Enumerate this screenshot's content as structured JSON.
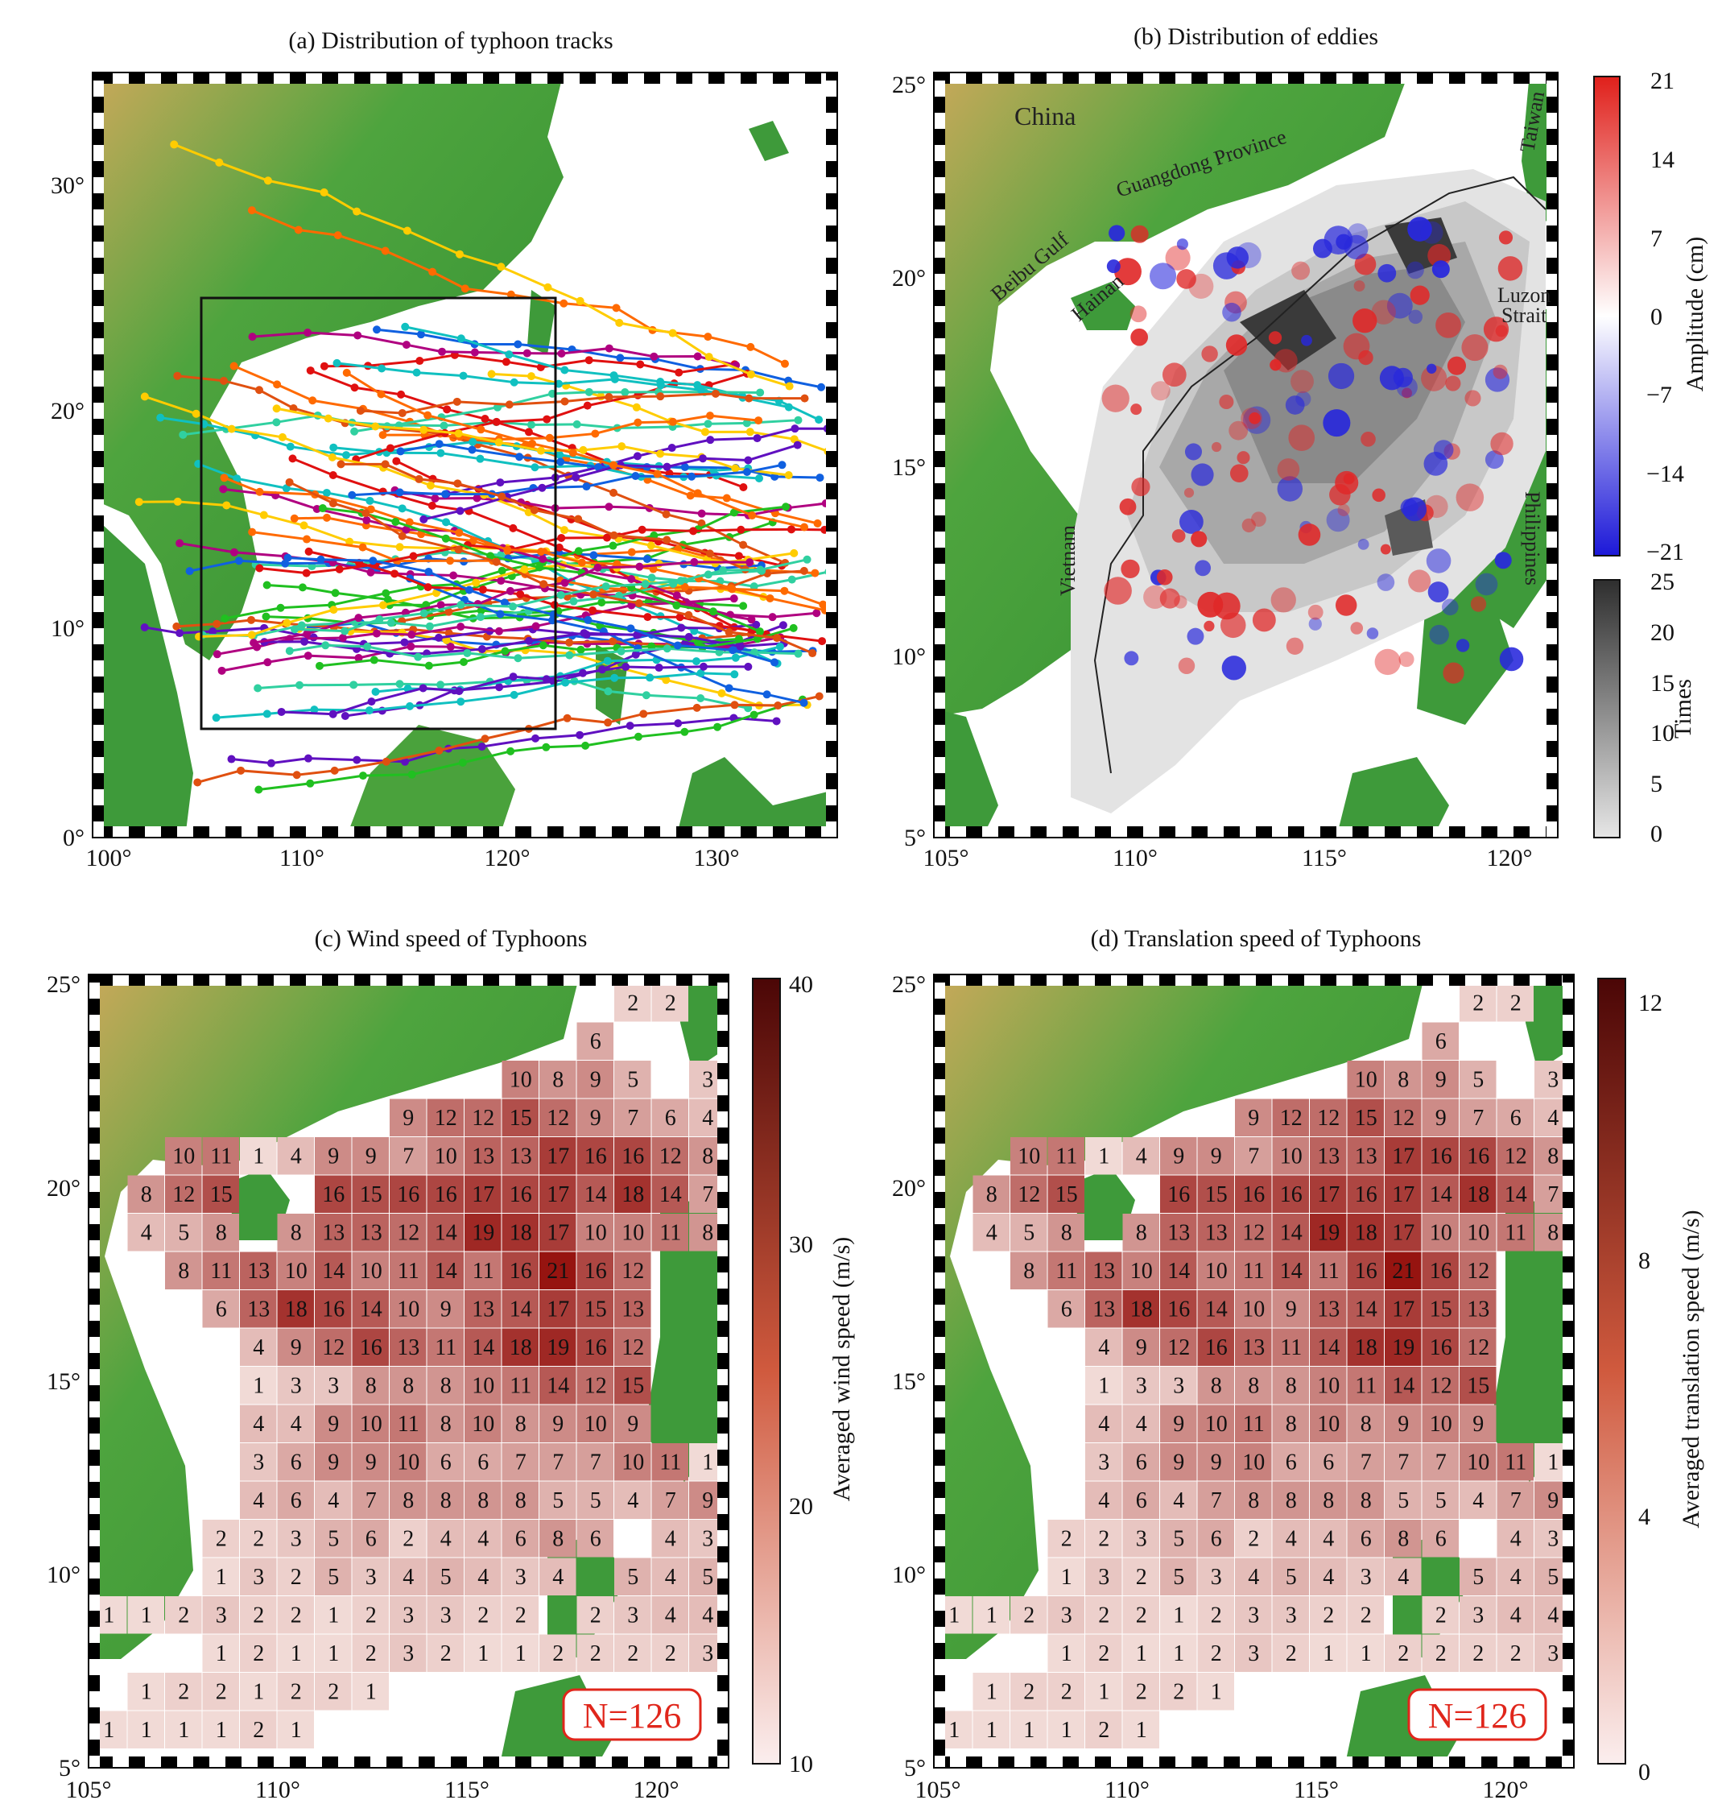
{
  "panels": {
    "a": {
      "title": "(a) Distribution of typhoon tracks",
      "xticks": [
        "100°",
        "110°",
        "120°",
        "130°"
      ],
      "yticks": [
        "0°",
        "10°",
        "20°",
        "30°"
      ]
    },
    "b": {
      "title": "(b) Distribution of eddies",
      "xticks": [
        "105°",
        "110°",
        "115°",
        "120°"
      ],
      "yticks": [
        "5°",
        "10°",
        "15°",
        "20°",
        "25°"
      ],
      "places": {
        "china": "China",
        "guangdong": "Guangdong Province",
        "beibu": "Beibu Gulf",
        "hainan": "Hainan",
        "luzon": "Luzon",
        "strait": "Strait",
        "vietnam": "Vietnam",
        "philippines": "Philippines",
        "taiwan": "Taiwan"
      },
      "amp_cb": {
        "label": "Amplitude (cm)",
        "ticks": [
          "21",
          "14",
          "7",
          "0",
          "−7",
          "−14",
          "−21"
        ]
      },
      "times_cb": {
        "label": "Times",
        "ticks": [
          "25",
          "20",
          "15",
          "10",
          "5",
          "0"
        ]
      }
    },
    "c": {
      "title": "(c) Wind speed of Typhoons",
      "xticks": [
        "105°",
        "110°",
        "115°",
        "120°"
      ],
      "yticks": [
        "5°",
        "10°",
        "15°",
        "20°",
        "25°"
      ],
      "cb": {
        "label": "Averaged wind speed (m/s)",
        "ticks": [
          "40",
          "30",
          "20",
          "10"
        ]
      },
      "n_label": "N=126"
    },
    "d": {
      "title": "(d) Translation speed of Typhoons",
      "xticks": [
        "105°",
        "110°",
        "115°",
        "120°"
      ],
      "yticks": [
        "5°",
        "10°",
        "15°",
        "20°",
        "25°"
      ],
      "cb": {
        "label": "Averaged translation speed (m/s)",
        "ticks": [
          "12",
          "8",
          "4",
          "0"
        ]
      },
      "n_label": "N=126"
    }
  },
  "grid_counts": [
    [
      0,
      0,
      0,
      0,
      0,
      0,
      0,
      0,
      0,
      0,
      0,
      0,
      0,
      0,
      2,
      2,
      0
    ],
    [
      0,
      0,
      0,
      0,
      0,
      0,
      0,
      0,
      0,
      0,
      0,
      0,
      0,
      6,
      0,
      0,
      0
    ],
    [
      0,
      0,
      0,
      0,
      0,
      0,
      0,
      0,
      0,
      0,
      0,
      10,
      8,
      9,
      5,
      0,
      3
    ],
    [
      0,
      0,
      0,
      0,
      0,
      0,
      0,
      0,
      9,
      12,
      12,
      15,
      12,
      9,
      7,
      6,
      4
    ],
    [
      0,
      0,
      10,
      11,
      1,
      4,
      9,
      9,
      7,
      10,
      13,
      13,
      17,
      16,
      16,
      12,
      8
    ],
    [
      0,
      8,
      12,
      15,
      0,
      0,
      16,
      15,
      16,
      16,
      17,
      16,
      17,
      14,
      18,
      14,
      7
    ],
    [
      0,
      4,
      5,
      8,
      0,
      8,
      13,
      13,
      12,
      14,
      19,
      18,
      17,
      10,
      10,
      11,
      8
    ],
    [
      0,
      0,
      8,
      11,
      13,
      10,
      14,
      10,
      11,
      14,
      11,
      16,
      21,
      16,
      12,
      0,
      0
    ],
    [
      0,
      0,
      0,
      6,
      13,
      18,
      16,
      14,
      10,
      9,
      13,
      14,
      17,
      15,
      13,
      0,
      0
    ],
    [
      0,
      0,
      0,
      0,
      4,
      9,
      12,
      16,
      13,
      11,
      14,
      18,
      19,
      16,
      12,
      0,
      0
    ],
    [
      0,
      0,
      0,
      0,
      1,
      3,
      3,
      8,
      8,
      8,
      10,
      11,
      14,
      12,
      15,
      0,
      0
    ],
    [
      0,
      0,
      0,
      0,
      4,
      4,
      9,
      10,
      11,
      8,
      10,
      8,
      9,
      10,
      9,
      0,
      0
    ],
    [
      0,
      0,
      0,
      0,
      3,
      6,
      9,
      9,
      10,
      6,
      6,
      7,
      7,
      7,
      10,
      11,
      1
    ],
    [
      0,
      0,
      0,
      0,
      4,
      6,
      4,
      7,
      8,
      8,
      8,
      8,
      5,
      5,
      4,
      7,
      9
    ],
    [
      0,
      0,
      0,
      2,
      2,
      3,
      5,
      6,
      2,
      4,
      4,
      6,
      8,
      6,
      0,
      4,
      3
    ],
    [
      0,
      0,
      0,
      1,
      3,
      2,
      5,
      3,
      4,
      5,
      4,
      3,
      4,
      0,
      5,
      4,
      5
    ],
    [
      1,
      1,
      2,
      3,
      2,
      2,
      1,
      2,
      3,
      3,
      2,
      2,
      0,
      2,
      3,
      4,
      4
    ],
    [
      0,
      0,
      0,
      1,
      2,
      1,
      1,
      2,
      3,
      2,
      1,
      1,
      2,
      2,
      2,
      2,
      3
    ],
    [
      0,
      1,
      2,
      2,
      1,
      2,
      2,
      1,
      0,
      0,
      0,
      0,
      0,
      0,
      0,
      0,
      0
    ],
    [
      1,
      1,
      1,
      1,
      2,
      1,
      0,
      0,
      0,
      0,
      0,
      0,
      0,
      0,
      0,
      0,
      0
    ]
  ],
  "colors": {
    "land": "#3f9f3a",
    "land_high": "#c8b36a",
    "ocean": "#ffffff",
    "cell_low": "#f6e4e0",
    "cell_high": "#5a0a0a",
    "amp_pos": "#e0201b",
    "amp_neg": "#2020d8",
    "n_box": "#e0261b"
  }
}
